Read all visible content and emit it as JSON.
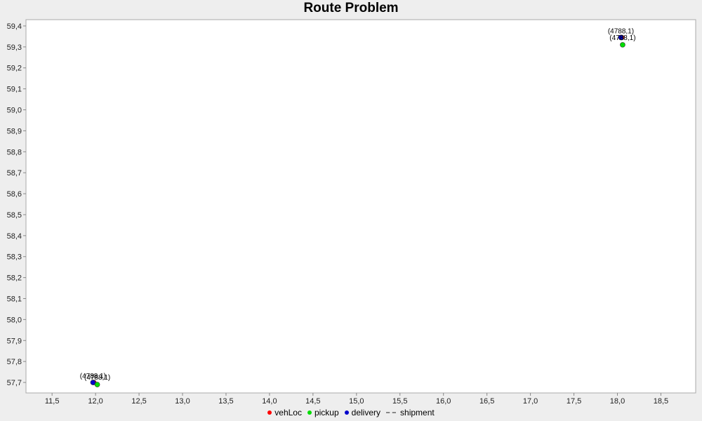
{
  "chart_data": {
    "type": "scatter",
    "title": "Route Problem",
    "xlabel": "",
    "ylabel": "",
    "xlim": [
      11.2,
      18.9
    ],
    "ylim": [
      57.65,
      59.43
    ],
    "x_ticks": [
      11.5,
      12.0,
      12.5,
      13.0,
      13.5,
      14.0,
      14.5,
      15.0,
      15.5,
      16.0,
      16.5,
      17.0,
      17.5,
      18.0,
      18.5
    ],
    "x_tick_labels": [
      "11,5",
      "12,0",
      "12,5",
      "13,0",
      "13,5",
      "14,0",
      "14,5",
      "15,0",
      "15,5",
      "16,0",
      "16,5",
      "17,0",
      "17,5",
      "18,0",
      "18,5"
    ],
    "y_ticks": [
      57.7,
      57.8,
      57.9,
      58.0,
      58.1,
      58.2,
      58.3,
      58.4,
      58.5,
      58.6,
      58.7,
      58.8,
      58.9,
      59.0,
      59.1,
      59.2,
      59.3,
      59.4
    ],
    "y_tick_labels": [
      "57,7",
      "57,8",
      "57,9",
      "58,0",
      "58,1",
      "58,2",
      "58,3",
      "58,4",
      "58,5",
      "58,6",
      "58,7",
      "58,8",
      "58,9",
      "59,0",
      "59,1",
      "59,2",
      "59,3",
      "59,4"
    ],
    "grid": false,
    "legend_position": "bottom",
    "series": [
      {
        "name": "vehLoc",
        "color": "#ff0000",
        "marker": "circle",
        "points": [
          {
            "x": 11.98,
            "y": 57.7
          },
          {
            "x": 18.05,
            "y": 59.345
          }
        ]
      },
      {
        "name": "pickup",
        "color": "#00dd00",
        "marker": "circle",
        "points": [
          {
            "x": 12.02,
            "y": 57.69,
            "label": "(4788,1)"
          },
          {
            "x": 18.06,
            "y": 59.31,
            "label": "(4788,1)"
          }
        ]
      },
      {
        "name": "delivery",
        "color": "#0000cc",
        "marker": "circle",
        "points": [
          {
            "x": 11.97,
            "y": 57.7,
            "label": "(4788,1)"
          },
          {
            "x": 18.04,
            "y": 59.345,
            "label": "(4788,1)"
          }
        ]
      },
      {
        "name": "shipment",
        "color": "#888888",
        "marker": "dashed-line",
        "points": []
      }
    ]
  }
}
